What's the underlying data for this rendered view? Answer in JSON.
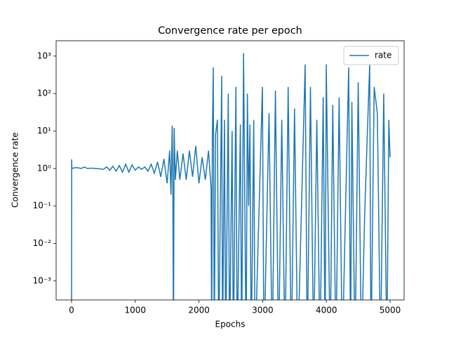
{
  "chart_data": {
    "type": "line",
    "title": "Convergence rate per epoch",
    "xlabel": "Epochs",
    "ylabel": "Convergence rate",
    "log_y": true,
    "legend": "upper right",
    "x": [
      0,
      2,
      5,
      50,
      100,
      150,
      200,
      250,
      300,
      400,
      500,
      550,
      600,
      650,
      700,
      750,
      800,
      850,
      900,
      950,
      1000,
      1050,
      1100,
      1150,
      1200,
      1250,
      1300,
      1350,
      1400,
      1450,
      1500,
      1540,
      1560,
      1580,
      1590,
      1600,
      1610,
      1630,
      1660,
      1700,
      1750,
      1800,
      1850,
      1900,
      1950,
      2000,
      2050,
      2100,
      2150,
      2190,
      2200,
      2210,
      2225,
      2240,
      2260,
      2290,
      2310,
      2357,
      2370,
      2400,
      2420,
      2460,
      2480,
      2520,
      2540,
      2580,
      2600,
      2650,
      2670,
      2700,
      2740,
      2760,
      2780,
      2800,
      2820,
      2860,
      2880,
      2996,
      3020,
      3100,
      3150,
      3200,
      3250,
      3300,
      3350,
      3400,
      3450,
      3500,
      3550,
      3667,
      3700,
      3750,
      3800,
      3850,
      3900,
      3950,
      3980,
      3998,
      4060,
      4100,
      4150,
      4200,
      4250,
      4350,
      4380,
      4400,
      4450,
      4500,
      4550,
      4600,
      4650,
      4680,
      4700,
      4750,
      4800,
      4850,
      4900,
      4950,
      4980,
      5000
    ],
    "series": [
      {
        "name": "rate",
        "color": "#1f77b4",
        "values": [
          1e-05,
          1.75,
          1.0,
          1.05,
          1.05,
          1.0,
          1.1,
          1.0,
          1.02,
          1.0,
          0.95,
          1.1,
          0.9,
          1.15,
          0.85,
          1.2,
          0.8,
          1.3,
          0.8,
          1.25,
          0.9,
          1.1,
          0.95,
          1.1,
          0.85,
          1.3,
          0.75,
          1.5,
          0.6,
          1.8,
          0.4,
          3,
          0.2,
          14,
          0.3,
          1e-05,
          12,
          0.5,
          3,
          0.5,
          2.5,
          0.5,
          3,
          0.6,
          4,
          0.4,
          2,
          0.5,
          3,
          0.3,
          1e-05,
          6,
          500,
          1e-05,
          8,
          20,
          1e-05,
          300,
          1e-05,
          20,
          1e-05,
          100,
          1e-05,
          10,
          1e-05,
          150,
          1e-05,
          15,
          1e-05,
          1200,
          1e-05,
          100,
          0.1,
          15,
          1e-05,
          20,
          1e-05,
          150,
          1e-05,
          30,
          1e-05,
          120,
          1e-05,
          20,
          1e-05,
          150,
          1e-05,
          40,
          1e-05,
          600,
          1e-05,
          150,
          1e-05,
          20,
          1e-05,
          80,
          1e-05,
          600,
          1e-05,
          50,
          1e-05,
          80,
          1e-05,
          500,
          1e-05,
          60,
          1e-05,
          200,
          1e-05,
          0.05,
          20,
          600,
          1e-05,
          150,
          30,
          1e-05,
          100,
          1e-05,
          20,
          2
        ]
      }
    ],
    "xlim": [
      -242,
      5220
    ],
    "xticks": [
      0,
      1000,
      2000,
      3000,
      4000,
      5000
    ],
    "ylim": [
      0.00031,
      2570
    ],
    "yticks": [
      {
        "value": 0.001,
        "label": "10⁻³"
      },
      {
        "value": 0.01,
        "label": "10⁻²"
      },
      {
        "value": 0.1,
        "label": "10⁻¹"
      },
      {
        "value": 1,
        "label": "10⁰"
      },
      {
        "value": 10,
        "label": "10¹"
      },
      {
        "value": 100,
        "label": "10²"
      },
      {
        "value": 1000,
        "label": "10³"
      }
    ]
  }
}
